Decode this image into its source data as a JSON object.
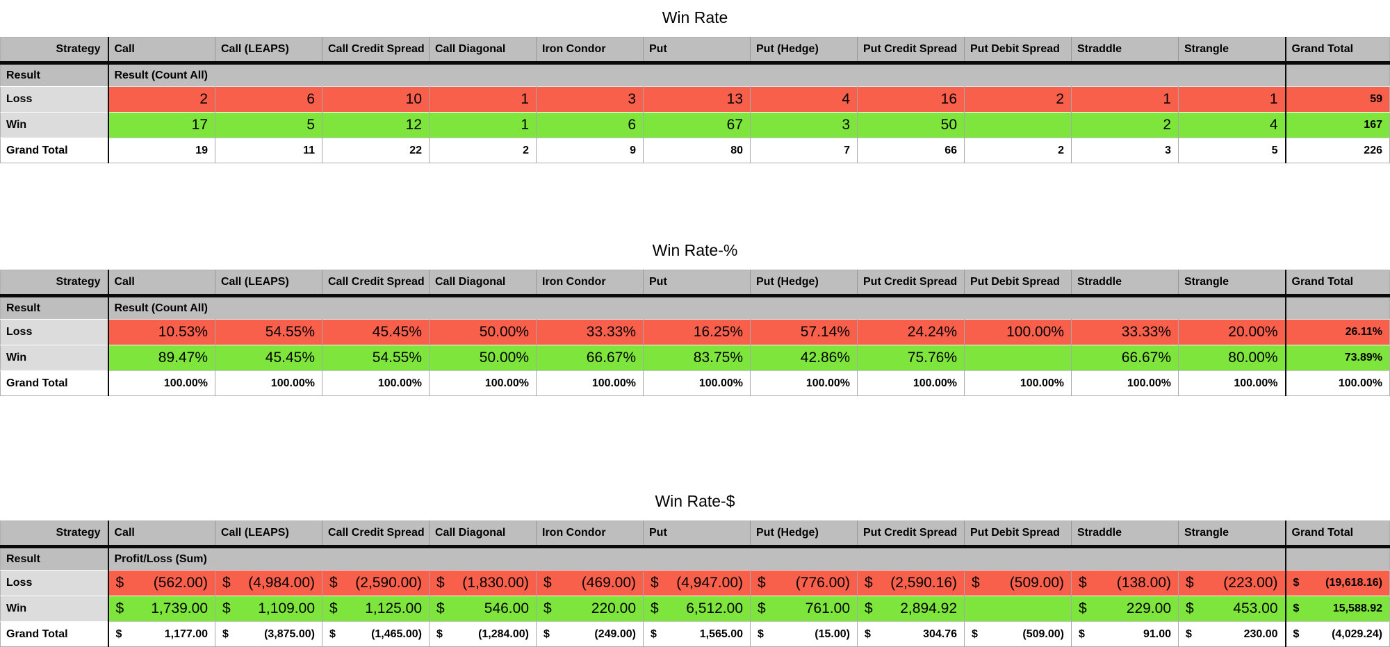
{
  "colors": {
    "loss_red": "#F9604C",
    "win_green": "#7DE53C",
    "header_gray": "#BEBEBE",
    "label_gray": "#DCDCDC"
  },
  "chart_data": [
    {
      "type": "table",
      "title": "Win Rate",
      "corner_header": "Strategy",
      "row_dimension_label": "Result",
      "values_label": "Result (Count All)",
      "currency_symbol": "",
      "columns": [
        "Call",
        "Call (LEAPS)",
        "Call Credit Spread",
        "Call Diagonal",
        "Iron Condor",
        "Put",
        "Put (Hedge)",
        "Put Credit Spread",
        "Put Debit Spread",
        "Straddle",
        "Strangle"
      ],
      "total_column": "Grand Total",
      "rows": [
        {
          "label": "Loss",
          "kind": "loss",
          "values": [
            "2",
            "6",
            "10",
            "1",
            "3",
            "13",
            "4",
            "16",
            "2",
            "1",
            "1"
          ],
          "total": "59"
        },
        {
          "label": "Win",
          "kind": "win",
          "values": [
            "17",
            "5",
            "12",
            "1",
            "6",
            "67",
            "3",
            "50",
            "",
            "2",
            "4"
          ],
          "total": "167"
        },
        {
          "label": "Grand Total",
          "kind": "grand_total",
          "values": [
            "19",
            "11",
            "22",
            "2",
            "9",
            "80",
            "7",
            "66",
            "2",
            "3",
            "5"
          ],
          "total": "226"
        }
      ]
    },
    {
      "type": "table",
      "title": "Win Rate-%",
      "corner_header": "Strategy",
      "row_dimension_label": "Result",
      "values_label": "Result (Count All)",
      "currency_symbol": "",
      "columns": [
        "Call",
        "Call (LEAPS)",
        "Call Credit Spread",
        "Call Diagonal",
        "Iron Condor",
        "Put",
        "Put (Hedge)",
        "Put Credit Spread",
        "Put Debit Spread",
        "Straddle",
        "Strangle"
      ],
      "total_column": "Grand Total",
      "rows": [
        {
          "label": "Loss",
          "kind": "loss",
          "values": [
            "10.53%",
            "54.55%",
            "45.45%",
            "50.00%",
            "33.33%",
            "16.25%",
            "57.14%",
            "24.24%",
            "100.00%",
            "33.33%",
            "20.00%"
          ],
          "total": "26.11%"
        },
        {
          "label": "Win",
          "kind": "win",
          "values": [
            "89.47%",
            "45.45%",
            "54.55%",
            "50.00%",
            "66.67%",
            "83.75%",
            "42.86%",
            "75.76%",
            "",
            "66.67%",
            "80.00%"
          ],
          "total": "73.89%"
        },
        {
          "label": "Grand Total",
          "kind": "grand_total",
          "values": [
            "100.00%",
            "100.00%",
            "100.00%",
            "100.00%",
            "100.00%",
            "100.00%",
            "100.00%",
            "100.00%",
            "100.00%",
            "100.00%",
            "100.00%"
          ],
          "total": "100.00%"
        }
      ]
    },
    {
      "type": "table",
      "title": "Win Rate-$",
      "corner_header": "Strategy",
      "row_dimension_label": "Result",
      "values_label": "Profit/Loss (Sum)",
      "currency_symbol": "$",
      "columns": [
        "Call",
        "Call (LEAPS)",
        "Call Credit Spread",
        "Call Diagonal",
        "Iron Condor",
        "Put",
        "Put (Hedge)",
        "Put Credit Spread",
        "Put Debit Spread",
        "Straddle",
        "Strangle"
      ],
      "total_column": "Grand Total",
      "rows": [
        {
          "label": "Loss",
          "kind": "loss",
          "values": [
            "(562.00)",
            "(4,984.00)",
            "(2,590.00)",
            "(1,830.00)",
            "(469.00)",
            "(4,947.00)",
            "(776.00)",
            "(2,590.16)",
            "(509.00)",
            "(138.00)",
            "(223.00)"
          ],
          "total": "(19,618.16)"
        },
        {
          "label": "Win",
          "kind": "win",
          "values": [
            "1,739.00",
            "1,109.00",
            "1,125.00",
            "546.00",
            "220.00",
            "6,512.00",
            "761.00",
            "2,894.92",
            "",
            "229.00",
            "453.00"
          ],
          "total": "15,588.92"
        },
        {
          "label": "Grand Total",
          "kind": "grand_total",
          "values": [
            "1,177.00",
            "(3,875.00)",
            "(1,465.00)",
            "(1,284.00)",
            "(249.00)",
            "1,565.00",
            "(15.00)",
            "304.76",
            "(509.00)",
            "91.00",
            "230.00"
          ],
          "total": "(4,029.24)"
        }
      ]
    }
  ]
}
